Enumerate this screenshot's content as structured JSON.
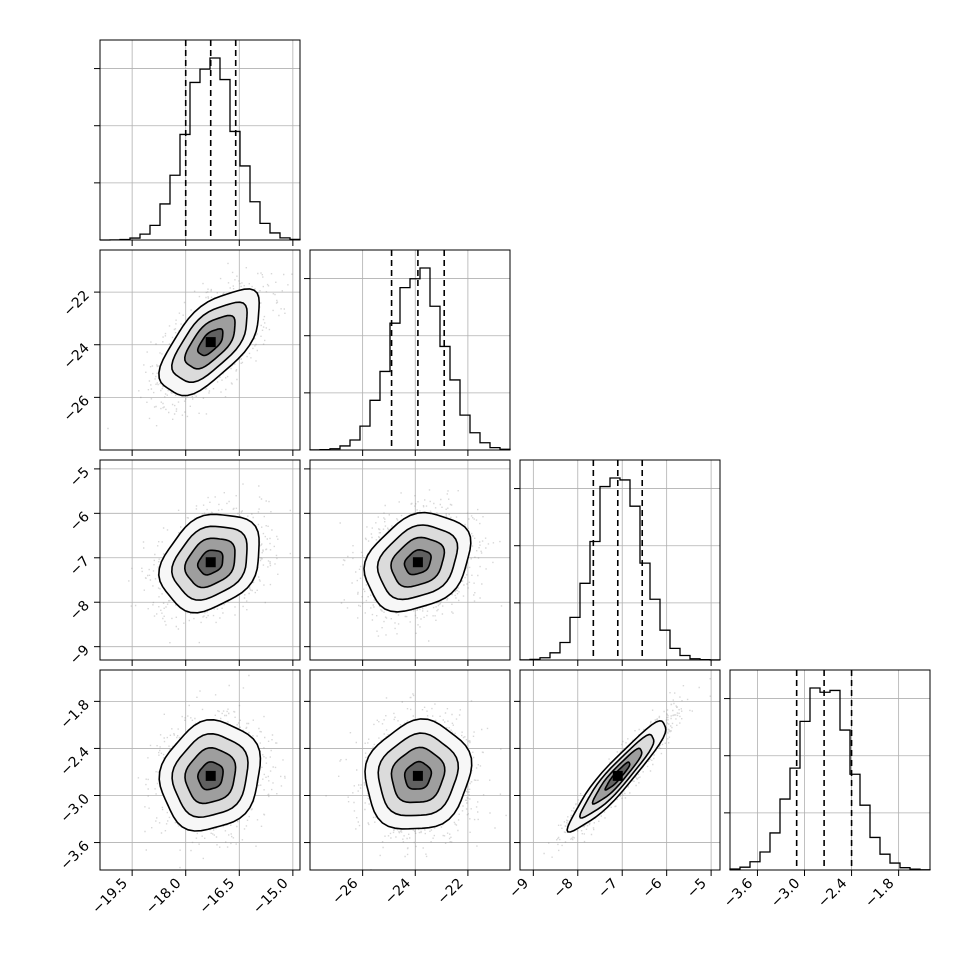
{
  "chart_data": {
    "type": "corner",
    "grid": true,
    "parameters": [
      {
        "range": [
          -20.4,
          -14.8
        ],
        "mean": -17.3,
        "sigma": 0.7,
        "quantiles": [
          -18.0,
          -17.3,
          -16.6
        ],
        "ticks": [
          -19.5,
          -18.0,
          -16.5,
          -15.0
        ],
        "tick_labels": [
          "−19.5",
          "−18.0",
          "−16.5",
          "−15.0"
        ]
      },
      {
        "range": [
          -28.0,
          -20.4
        ],
        "mean": -23.9,
        "sigma": 1.0,
        "quantiles": [
          -24.9,
          -23.9,
          -22.9
        ],
        "ticks": [
          -26,
          -24,
          -22
        ],
        "tick_labels": [
          "−26",
          "−24",
          "−22"
        ]
      },
      {
        "range": [
          -9.3,
          -4.8
        ],
        "mean": -7.1,
        "sigma": 0.55,
        "quantiles": [
          -7.65,
          -7.1,
          -6.55
        ],
        "ticks": [
          -9,
          -8,
          -7,
          -6,
          -5
        ],
        "tick_labels": [
          "−9",
          "−8",
          "−7",
          "−6",
          "−5"
        ]
      },
      {
        "range": [
          -3.95,
          -1.4
        ],
        "mean": -2.75,
        "sigma": 0.35,
        "quantiles": [
          -3.1,
          -2.75,
          -2.4
        ],
        "ticks": [
          -3.6,
          -3.0,
          -2.4,
          -1.8
        ],
        "tick_labels": [
          "−3.6",
          "−3.0",
          "−2.4",
          "−1.8"
        ]
      }
    ],
    "histograms": [
      {
        "bins": 20,
        "peak_fraction": 0.91
      },
      {
        "bins": 20,
        "peak_fraction": 0.91
      },
      {
        "bins": 20,
        "peak_fraction": 0.91
      },
      {
        "bins": 20,
        "peak_fraction": 0.91
      }
    ],
    "histogram_ticks": 3,
    "correlations": [
      {
        "pair": [
          0,
          1
        ],
        "rho": 0.62
      },
      {
        "pair": [
          0,
          2
        ],
        "rho": 0.25
      },
      {
        "pair": [
          1,
          2
        ],
        "rho": 0.25
      },
      {
        "pair": [
          0,
          3
        ],
        "rho": 0.12
      },
      {
        "pair": [
          1,
          3
        ],
        "rho": 0.1
      },
      {
        "pair": [
          2,
          3
        ],
        "rho": 0.93
      }
    ],
    "contour_levels_sigma": [
      0.5,
      1.0,
      1.5,
      2.0
    ],
    "sample_points_per_panel": 1600,
    "colors": {
      "hist": "#000000",
      "contour": "#000000",
      "points": "#8c8c8c",
      "grid": "#b0b0b0"
    }
  }
}
